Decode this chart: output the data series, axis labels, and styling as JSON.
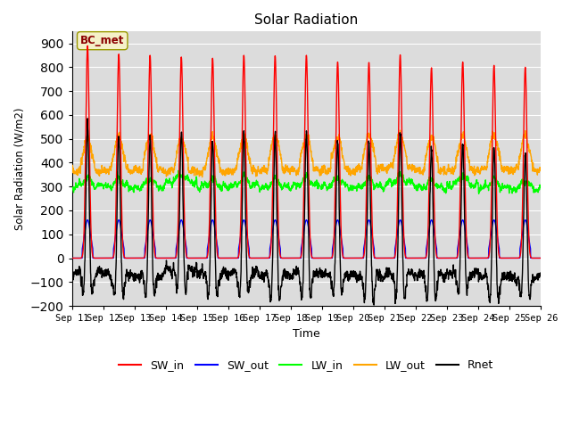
{
  "title": "Solar Radiation",
  "xlabel": "Time",
  "ylabel": "Solar Radiation (W/m2)",
  "ylim": [
    -200,
    950
  ],
  "yticks": [
    -200,
    -100,
    0,
    100,
    200,
    300,
    400,
    500,
    600,
    700,
    800,
    900
  ],
  "n_days": 15,
  "x_tick_labels": [
    "Sep 11",
    "Sep 12",
    "Sep 13",
    "Sep 14",
    "Sep 15",
    "Sep 16",
    "Sep 17",
    "Sep 18",
    "Sep 19",
    "Sep 20",
    "Sep 21",
    "Sep 22",
    "Sep 23",
    "Sep 24",
    "Sep 25",
    "Sep 26"
  ],
  "colors": {
    "SW_in": "#ff0000",
    "SW_out": "#0000ff",
    "LW_in": "#00ff00",
    "LW_out": "#ffa500",
    "Rnet": "#000000"
  },
  "annotation_text": "BC_met",
  "annotation_color": "#8b0000",
  "annotation_bg": "#f5f0c8",
  "annotation_edge": "#999900",
  "bg_color": "#dcdcdc",
  "sw_in_peaks": [
    890,
    855,
    850,
    843,
    838,
    850,
    848,
    850,
    822,
    820,
    852,
    798,
    822,
    808,
    800
  ],
  "sw_out_peak": 160,
  "lw_in_base": 305,
  "lw_out_base": 370,
  "rnet_night": -85
}
